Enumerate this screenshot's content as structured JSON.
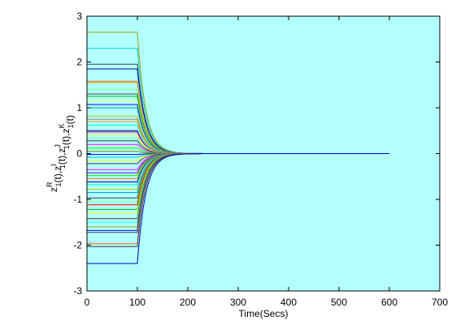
{
  "chart_data": {
    "type": "line",
    "xlabel": "Time(Secs)",
    "ylabel": {
      "parts": [
        {
          "base": "z",
          "sub": "1",
          "sup": "R"
        },
        {
          "text": "(t),"
        },
        {
          "base": "z",
          "sub": "1",
          "sup": "I"
        },
        {
          "text": "(t),"
        },
        {
          "base": "z",
          "sub": "1",
          "sup": "J"
        },
        {
          "text": "(t),"
        },
        {
          "base": "z",
          "sub": "1",
          "sup": "K"
        },
        {
          "text": "(t)"
        }
      ]
    },
    "xlim": [
      0,
      700
    ],
    "ylim": [
      -3,
      3
    ],
    "xticks": [
      "0",
      "100",
      "200",
      "300",
      "400",
      "500",
      "600",
      "700"
    ],
    "yticks": [
      "-3",
      "-2",
      "-1",
      "0",
      "1",
      "2",
      "3"
    ],
    "grid": false,
    "plot_background": "#b3ffff",
    "switch_time": 100,
    "end_time": 600,
    "decay_rate": 0.06,
    "series": [
      {
        "color": "#a0a000",
        "values_initial": 2.65
      },
      {
        "color": "#00d0d0",
        "values_initial": 2.3
      },
      {
        "color": "#404040",
        "values_initial": 1.95
      },
      {
        "color": "#0000b0",
        "values_initial": 1.85
      },
      {
        "color": "#ff6000",
        "values_initial": 1.58
      },
      {
        "color": "#d0a000",
        "values_initial": 1.55
      },
      {
        "color": "#80ff80",
        "values_initial": 1.4
      },
      {
        "color": "#404040",
        "values_initial": 1.3
      },
      {
        "color": "#00c000",
        "values_initial": 1.25
      },
      {
        "color": "#ffff60",
        "values_initial": 1.15
      },
      {
        "color": "#0000ff",
        "values_initial": 1.07
      },
      {
        "color": "#00a0a0",
        "values_initial": 1.0
      },
      {
        "color": "#c0c000",
        "values_initial": 0.82
      },
      {
        "color": "#808080",
        "values_initial": 0.75
      },
      {
        "color": "#ff9900",
        "values_initial": 0.7
      },
      {
        "color": "#00ffff",
        "values_initial": 0.62
      },
      {
        "color": "#000080",
        "values_initial": 0.5
      },
      {
        "color": "#c000c0",
        "values_initial": 0.47
      },
      {
        "color": "#ffff00",
        "values_initial": 0.42
      },
      {
        "color": "#80ff80",
        "values_initial": 0.33
      },
      {
        "color": "#404040",
        "values_initial": 0.28
      },
      {
        "color": "#ff00ff",
        "values_initial": 0.2
      },
      {
        "color": "#00ff00",
        "values_initial": 0.12
      },
      {
        "color": "#808000",
        "values_initial": 0.05
      },
      {
        "color": "#0000ff",
        "values_initial": -0.02
      },
      {
        "color": "#00c0c0",
        "values_initial": -0.08
      },
      {
        "color": "#ffff00",
        "values_initial": -0.15
      },
      {
        "color": "#404040",
        "values_initial": -0.22
      },
      {
        "color": "#ff00ff",
        "values_initial": -0.35
      },
      {
        "color": "#8000ff",
        "values_initial": -0.42
      },
      {
        "color": "#00ff00",
        "values_initial": -0.48
      },
      {
        "color": "#ff8000",
        "values_initial": -0.55
      },
      {
        "color": "#0000a0",
        "values_initial": -0.62
      },
      {
        "color": "#00ffff",
        "values_initial": -0.68
      },
      {
        "color": "#c0c000",
        "values_initial": -0.78
      },
      {
        "color": "#00a0ff",
        "values_initial": -0.85
      },
      {
        "color": "#404040",
        "values_initial": -0.97
      },
      {
        "color": "#80ff80",
        "values_initial": -1.05
      },
      {
        "color": "#ff0000",
        "values_initial": -1.12
      },
      {
        "color": "#00c000",
        "values_initial": -1.22
      },
      {
        "color": "#ffff00",
        "values_initial": -1.3
      },
      {
        "color": "#404040",
        "values_initial": -1.42
      },
      {
        "color": "#00ffff",
        "values_initial": -1.5
      },
      {
        "color": "#a0a000",
        "values_initial": -1.6
      },
      {
        "color": "#0000ff",
        "values_initial": -1.68
      },
      {
        "color": "#404040",
        "values_initial": -1.72
      },
      {
        "color": "#ff6000",
        "values_initial": -1.97
      },
      {
        "color": "#404040",
        "values_initial": -2.03
      },
      {
        "color": "#0000c0",
        "values_initial": -2.4
      }
    ]
  }
}
